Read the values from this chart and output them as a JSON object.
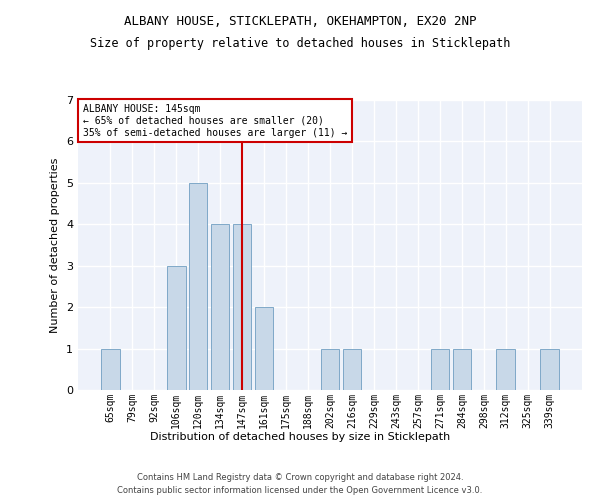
{
  "title": "ALBANY HOUSE, STICKLEPATH, OKEHAMPTON, EX20 2NP",
  "subtitle": "Size of property relative to detached houses in Sticklepath",
  "xlabel": "Distribution of detached houses by size in Sticklepath",
  "ylabel": "Number of detached properties",
  "categories": [
    "65sqm",
    "79sqm",
    "92sqm",
    "106sqm",
    "120sqm",
    "134sqm",
    "147sqm",
    "161sqm",
    "175sqm",
    "188sqm",
    "202sqm",
    "216sqm",
    "229sqm",
    "243sqm",
    "257sqm",
    "271sqm",
    "284sqm",
    "298sqm",
    "312sqm",
    "325sqm",
    "339sqm"
  ],
  "values": [
    1,
    0,
    0,
    3,
    5,
    4,
    4,
    2,
    0,
    0,
    1,
    1,
    0,
    0,
    0,
    1,
    1,
    0,
    1,
    0,
    1
  ],
  "bar_color": "#c8d8e8",
  "bar_edge_color": "#7fa8c8",
  "highlight_index": 6,
  "highlight_line_color": "#cc0000",
  "annotation_line1": "ALBANY HOUSE: 145sqm",
  "annotation_line2": "← 65% of detached houses are smaller (20)",
  "annotation_line3": "35% of semi-detached houses are larger (11) →",
  "annotation_box_color": "#cc0000",
  "ylim": [
    0,
    7
  ],
  "yticks": [
    0,
    1,
    2,
    3,
    4,
    5,
    6,
    7
  ],
  "bg_color": "#eef2fa",
  "grid_color": "#ffffff",
  "footer1": "Contains HM Land Registry data © Crown copyright and database right 2024.",
  "footer2": "Contains public sector information licensed under the Open Government Licence v3.0."
}
